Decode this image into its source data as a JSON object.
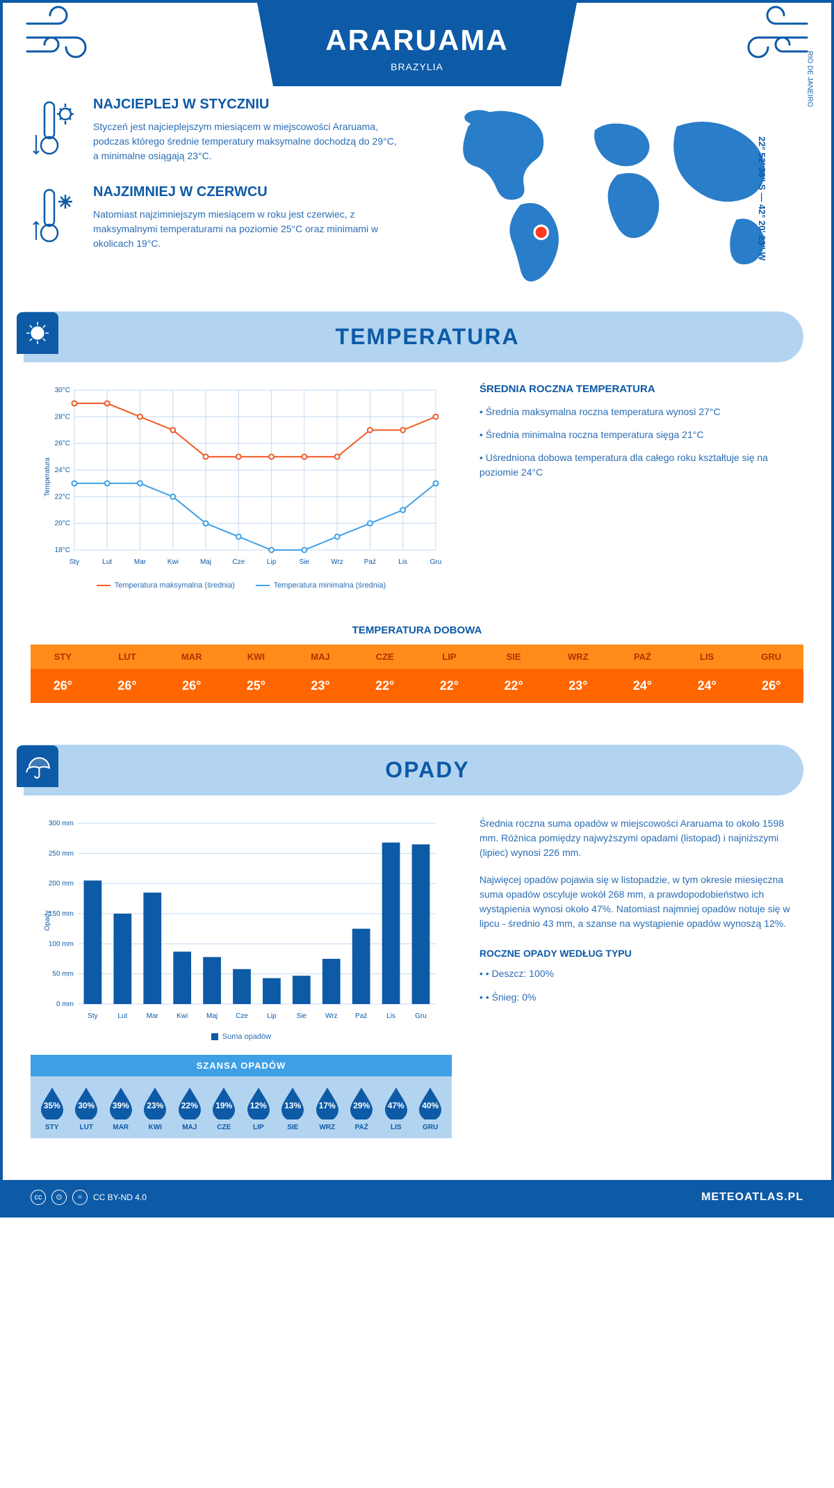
{
  "header": {
    "city": "ARARUAMA",
    "country": "BRAZYLIA"
  },
  "location": {
    "coords": "22° 52' 36'' S — 42° 20' 23'' W",
    "region": "RIO DE JANEIRO",
    "marker_color": "#ff3b1f"
  },
  "facts": {
    "warm": {
      "title": "NAJCIEPLEJ W STYCZNIU",
      "text": "Styczeń jest najcieplejszym miesiącem w miejscowości Araruama, podczas którego średnie temperatury maksymalne dochodzą do 29°C, a minimalne osiągają 23°C."
    },
    "cold": {
      "title": "NAJZIMNIEJ W CZERWCU",
      "text": "Natomiast najzimniejszym miesiącem w roku jest czerwiec, z maksymalnymi temperaturami na poziomie 25°C oraz minimami w okolicach 19°C."
    }
  },
  "temperature_section": {
    "title": "TEMPERATURA",
    "side_title": "ŚREDNIA ROCZNA TEMPERATURA",
    "bullets": [
      "Średnia maksymalna roczna temperatura wynosi 27°C",
      "Średnia minimalna roczna temperatura sięga 21°C",
      "Uśredniona dobowa temperatura dla całego roku kształtuje się na poziomie 24°C"
    ],
    "chart": {
      "type": "line",
      "months": [
        "Sty",
        "Lut",
        "Mar",
        "Kwi",
        "Maj",
        "Cze",
        "Lip",
        "Sie",
        "Wrz",
        "Paź",
        "Lis",
        "Gru"
      ],
      "y_label": "Temperatura",
      "ylim": [
        18,
        30
      ],
      "ytick_step": 2,
      "max_series": {
        "label": "Temperatura maksymalna (średnia)",
        "color": "#f15a24",
        "values": [
          29,
          29,
          28,
          27,
          25,
          25,
          25,
          25,
          25,
          27,
          27,
          28
        ]
      },
      "min_series": {
        "label": "Temperatura minimalna (średnia)",
        "color": "#3fa0e6",
        "values": [
          23,
          23,
          23,
          22,
          20,
          19,
          18,
          18,
          19,
          20,
          21,
          23
        ]
      },
      "grid_color": "#c5daf0",
      "background": "#ffffff"
    },
    "daily": {
      "title": "TEMPERATURA DOBOWA",
      "months": [
        "STY",
        "LUT",
        "MAR",
        "KWI",
        "MAJ",
        "CZE",
        "LIP",
        "SIE",
        "WRZ",
        "PAŹ",
        "LIS",
        "GRU"
      ],
      "values": [
        "26°",
        "26°",
        "26°",
        "25°",
        "23°",
        "22°",
        "22°",
        "22°",
        "23°",
        "24°",
        "24°",
        "26°"
      ],
      "header_bg": "#ff8c1a",
      "header_text": "#b33000",
      "value_bg": "#ff6600",
      "value_text": "#ffffff"
    }
  },
  "precip_section": {
    "title": "OPADY",
    "para1": "Średnia roczna suma opadów w miejscowości Araruama to około 1598 mm. Różnica pomiędzy najwyższymi opadami (listopad) i najniższymi (lipiec) wynosi 226 mm.",
    "para2": "Najwięcej opadów pojawia się w listopadzie, w tym okresie miesięczna suma opadów oscyluje wokół 268 mm, a prawdopodobieństwo ich wystąpienia wynosi około 47%. Natomiast najmniej opadów notuje się w lipcu - średnio 43 mm, a szanse na wystąpienie opadów wynoszą 12%.",
    "type_title": "ROCZNE OPADY WEDŁUG TYPU",
    "types": [
      "Deszcz: 100%",
      "Śnieg: 0%"
    ],
    "bar_chart": {
      "type": "bar",
      "months": [
        "Sty",
        "Lut",
        "Mar",
        "Kwi",
        "Maj",
        "Cze",
        "Lip",
        "Sie",
        "Wrz",
        "Paź",
        "Lis",
        "Gru"
      ],
      "values": [
        205,
        150,
        185,
        87,
        78,
        58,
        43,
        47,
        75,
        125,
        268,
        265
      ],
      "y_label": "Opady",
      "ylim": [
        0,
        300
      ],
      "ytick_step": 50,
      "bar_color": "#0d5aa7",
      "grid_color": "#c5daf0",
      "legend": "Suma opadów"
    },
    "chance": {
      "title": "SZANSA OPADÓW",
      "months": [
        "STY",
        "LUT",
        "MAR",
        "KWI",
        "MAJ",
        "CZE",
        "LIP",
        "SIE",
        "WRZ",
        "PAŹ",
        "LIS",
        "GRU"
      ],
      "pct": [
        "35%",
        "30%",
        "39%",
        "23%",
        "22%",
        "19%",
        "12%",
        "13%",
        "17%",
        "29%",
        "47%",
        "40%"
      ],
      "drop_color": "#0d5aa7",
      "bg": "#b3d4f0",
      "header_bg": "#3fa0e6"
    }
  },
  "footer": {
    "license": "CC BY-ND 4.0",
    "site": "METEOATLAS.PL"
  },
  "colors": {
    "primary": "#0d5aa7",
    "light": "#b3d4f0",
    "accent": "#3fa0e6"
  }
}
